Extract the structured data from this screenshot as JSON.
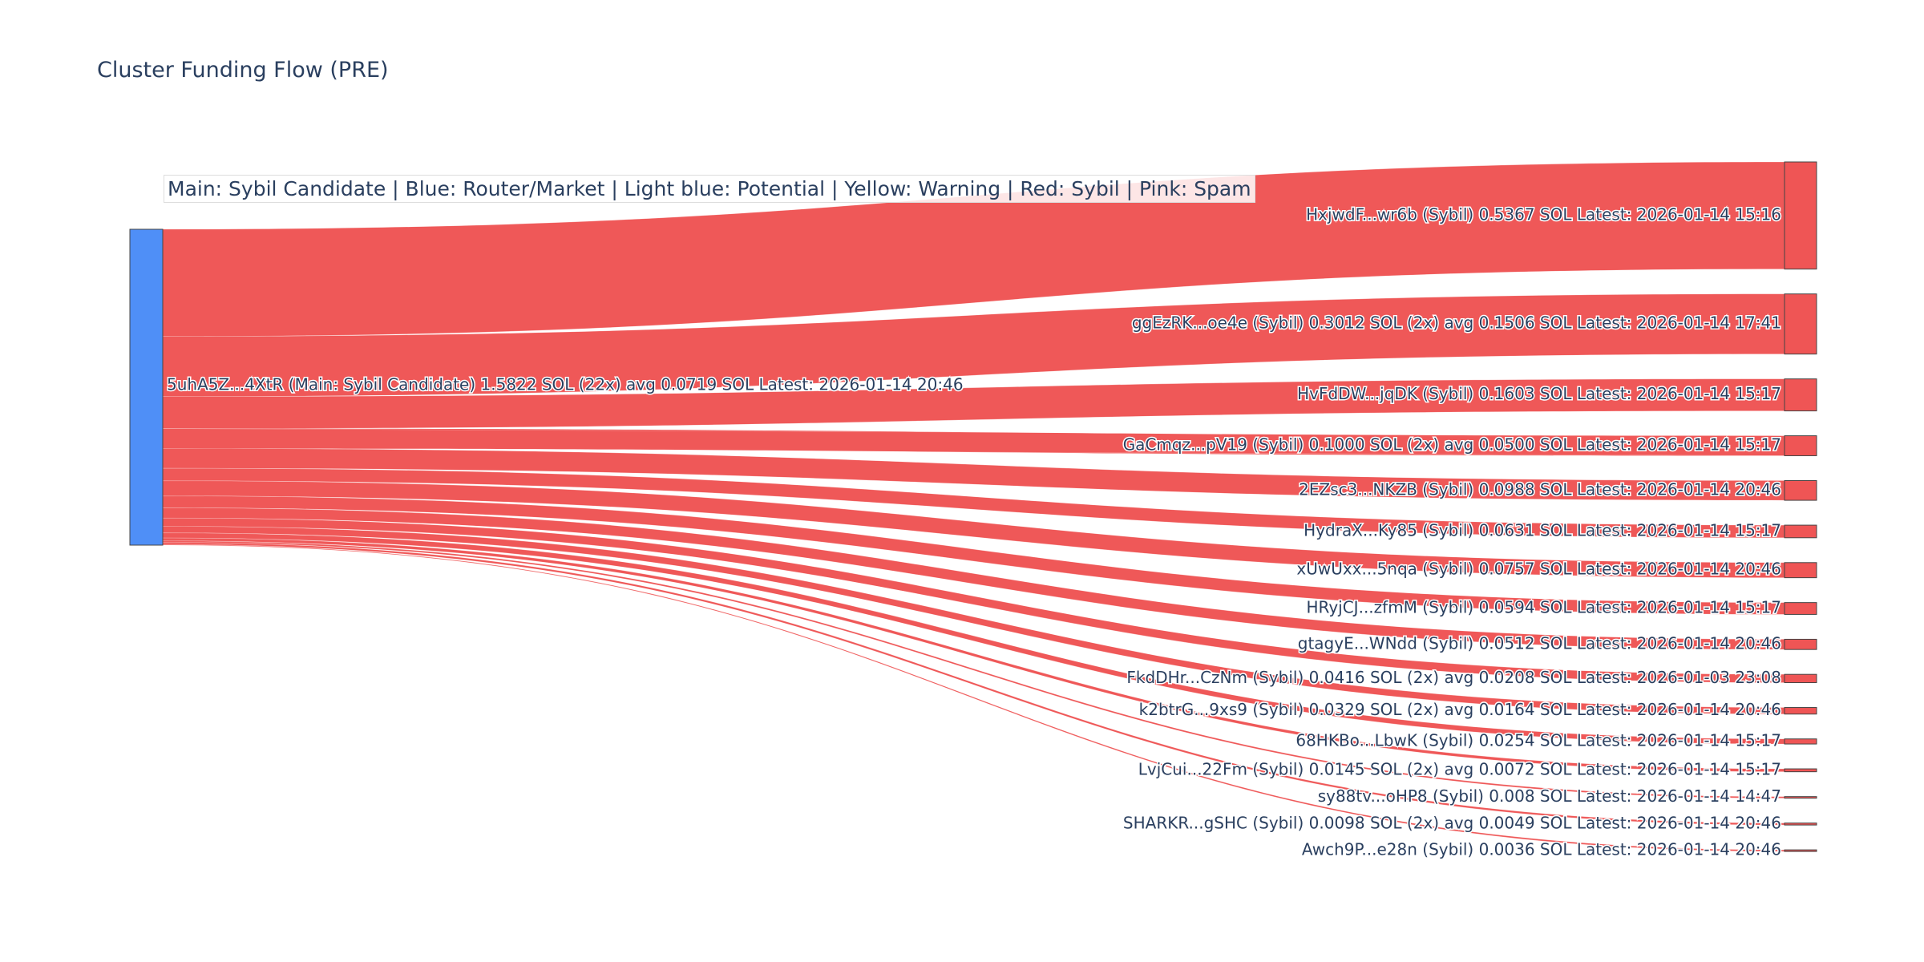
{
  "chart_data": {
    "type": "sankey",
    "title": "Cluster Funding Flow (PRE)",
    "legend_text": "Main: Sybil Candidate  |  Blue: Router/Market | Light blue: Potential | Yellow: Warning | Red: Sybil | Pink: Spam",
    "colors": {
      "main_node": "#4f8ff7",
      "target_node": "#ef5555",
      "link": "#ef5555",
      "node_border": "#444444"
    },
    "source": {
      "label": "5uhA5Z...4XtR (Main: Sybil Candidate) 1.5822 SOL (22x) avg 0.0719 SOL Latest: 2026-01-14 20:46",
      "value": 1.5822
    },
    "targets": [
      {
        "label": "HxjwdF...wr6b (Sybil) 0.5367 SOL Latest: 2026-01-14 15:16",
        "value": 0.5367
      },
      {
        "label": "ggEzRK...oe4e (Sybil) 0.3012 SOL (2x) avg 0.1506 SOL Latest: 2026-01-14 17:41",
        "value": 0.3012
      },
      {
        "label": "HvFdDW...jqDK (Sybil) 0.1603 SOL Latest: 2026-01-14 15:17",
        "value": 0.1603
      },
      {
        "label": "GaCmqz...pV19 (Sybil) 0.1000 SOL (2x) avg 0.0500 SOL Latest: 2026-01-14 15:17",
        "value": 0.1
      },
      {
        "label": "2EZsc3...NKZB (Sybil) 0.0988 SOL Latest: 2026-01-14 20:46",
        "value": 0.0988
      },
      {
        "label": "HydraX...Ky85 (Sybil) 0.0631 SOL Latest: 2026-01-14 15:17",
        "value": 0.0631
      },
      {
        "label": "xUwUxx...5nqa (Sybil) 0.0757 SOL Latest: 2026-01-14 20:46",
        "value": 0.0757
      },
      {
        "label": "HRyjCJ...zfmM (Sybil) 0.0594 SOL Latest: 2026-01-14 15:17",
        "value": 0.0594
      },
      {
        "label": "gtagyE...WNdd (Sybil) 0.0512 SOL Latest: 2026-01-14 20:46",
        "value": 0.0512
      },
      {
        "label": "FkdDHr...CzNm (Sybil) 0.0416 SOL (2x) avg 0.0208 SOL Latest: 2026-01-03 23:08",
        "value": 0.0416
      },
      {
        "label": "k2btrG...9xs9 (Sybil) 0.0329 SOL (2x) avg 0.0164 SOL Latest: 2026-01-14 20:46",
        "value": 0.0329
      },
      {
        "label": "68HKBo...LbwK (Sybil) 0.0254 SOL Latest: 2026-01-14 15:17",
        "value": 0.0254
      },
      {
        "label": "LvjCui...22Fm (Sybil) 0.0145 SOL (2x) avg 0.0072 SOL Latest: 2026-01-14 15:17",
        "value": 0.0145
      },
      {
        "label": "sy88tv...oHP8 (Sybil) 0.008 SOL Latest: 2026-01-14 14:47",
        "value": 0.008
      },
      {
        "label": "SHARKR...gSHC (Sybil) 0.0098 SOL (2x) avg 0.0049 SOL Latest: 2026-01-14 20:46",
        "value": 0.0098
      },
      {
        "label": "Awch9P...e28n (Sybil) 0.0036 SOL Latest: 2026-01-14 20:46",
        "value": 0.0036
      }
    ]
  }
}
